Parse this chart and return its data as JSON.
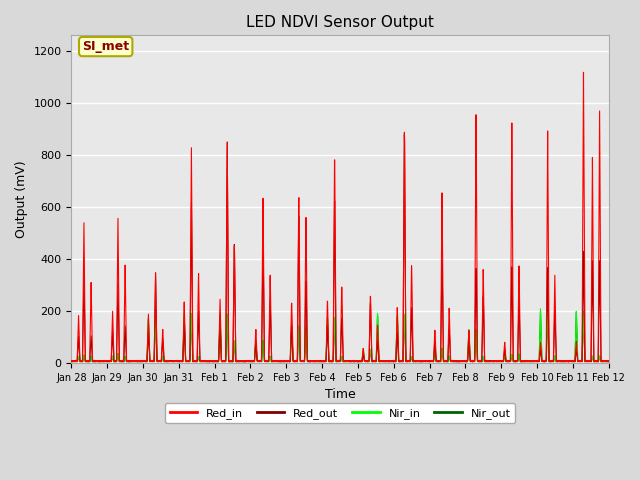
{
  "title": "LED NDVI Sensor Output",
  "xlabel": "Time",
  "ylabel": "Output (mV)",
  "ylim": [
    0,
    1260
  ],
  "yticks": [
    0,
    200,
    400,
    600,
    800,
    1000,
    1200
  ],
  "annotation_text": "SI_met",
  "annotation_bg": "#ffffcc",
  "annotation_border": "#aaaa00",
  "bg_color": "#d9d9d9",
  "plot_bg": "#e8e8e8",
  "grid_color": "#ffffff",
  "colors": {
    "Red_in": "#ff0000",
    "Red_out": "#800000",
    "Nir_in": "#00ff00",
    "Nir_out": "#006400"
  },
  "xtick_labels": [
    "Jan 28",
    "Jan 29",
    "Jan 30",
    "Jan 31",
    "Feb 1",
    "Feb 2",
    "Feb 3",
    "Feb 4",
    "Feb 5",
    "Feb 6",
    "Feb 7",
    "Feb 8",
    "Feb 9",
    "Feb 10",
    "Feb 11",
    "Feb 12"
  ],
  "linewidth": 0.8,
  "figsize": [
    6.4,
    4.8
  ],
  "dpi": 100
}
